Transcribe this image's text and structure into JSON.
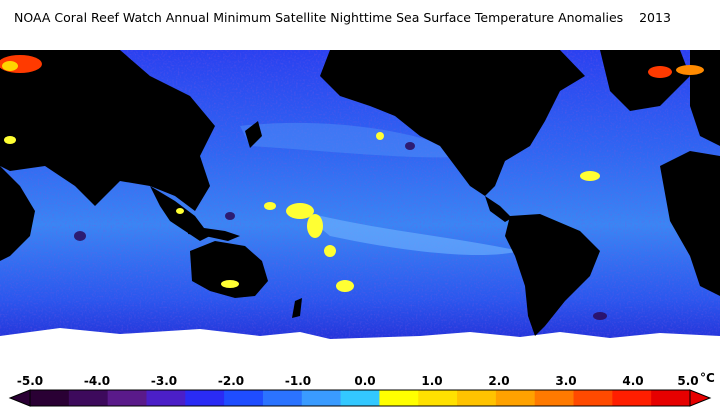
{
  "title": "NOAA Coral Reef Watch Annual Minimum Satellite Nighttime Sea Surface Temperature Anomalies    2013",
  "colorbar": {
    "unit": "°C",
    "ticks": [
      "-5.0",
      "-4.0",
      "-3.0",
      "-2.0",
      "-1.0",
      "0.0",
      "1.0",
      "2.0",
      "3.0",
      "4.0",
      "5.0"
    ],
    "range": [
      -5.0,
      5.0
    ],
    "colors": [
      "#2a0034",
      "#3d0a5c",
      "#5a1a8a",
      "#4b1fc8",
      "#2a2bf5",
      "#1f4dff",
      "#2b73ff",
      "#3a9bff",
      "#33c8ff",
      "#ffff00",
      "#ffe100",
      "#ffc300",
      "#ffa200",
      "#ff7a00",
      "#ff4a00",
      "#ff1e00",
      "#e60000"
    ]
  },
  "map": {
    "ocean_color": "#2b58f0",
    "land_color": "#000000",
    "ice_color": "#ffffff",
    "anomaly_band_color": "#3aa0f2",
    "warm_patch_color": "#ffff33"
  }
}
